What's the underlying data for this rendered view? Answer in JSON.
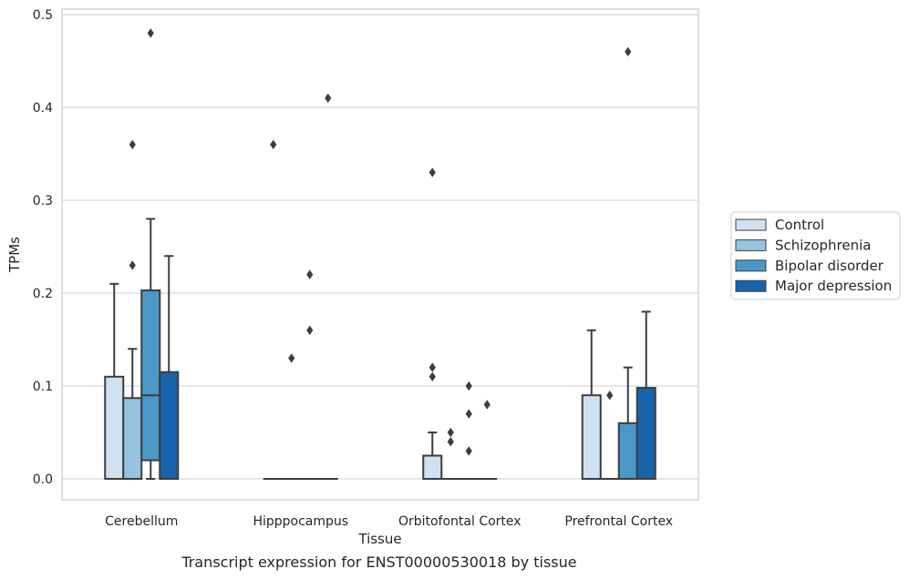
{
  "chart_data": {
    "type": "boxplot",
    "title": "",
    "caption": "Transcript expression for ENST00000530018 by tissue",
    "xlabel": "Tissue",
    "ylabel": "TPMs",
    "ylim": [
      -0.023,
      0.505
    ],
    "yticks": [
      "0.0",
      "0.1",
      "0.2",
      "0.3",
      "0.4",
      "0.5"
    ],
    "categories": [
      "Cerebellum",
      "Hipppocampus",
      "Orbitofontal Cortex",
      "Prefrontal Cortex"
    ],
    "grid": "horizontal",
    "legend_position": "right",
    "series": [
      {
        "name": "Control",
        "color": "#d0e1f2",
        "boxes": [
          {
            "q1": 0.0,
            "median": 0.0,
            "q3": 0.11,
            "whisker_low": 0.0,
            "whisker_high": 0.21,
            "outliers": []
          },
          {
            "q1": 0.0,
            "median": 0.0,
            "q3": 0.0,
            "whisker_low": 0.0,
            "whisker_high": 0.0,
            "outliers": [
              0.36
            ]
          },
          {
            "q1": 0.0,
            "median": 0.0,
            "q3": 0.025,
            "whisker_low": 0.0,
            "whisker_high": 0.05,
            "outliers": [
              0.33,
              0.12,
              0.11
            ]
          },
          {
            "q1": 0.0,
            "median": 0.0,
            "q3": 0.09,
            "whisker_low": 0.0,
            "whisker_high": 0.16,
            "outliers": []
          }
        ]
      },
      {
        "name": "Schizophrenia",
        "color": "#94c4df",
        "boxes": [
          {
            "q1": 0.0,
            "median": 0.0,
            "q3": 0.087,
            "whisker_low": 0.0,
            "whisker_high": 0.14,
            "outliers": [
              0.36,
              0.23
            ]
          },
          {
            "q1": 0.0,
            "median": 0.0,
            "q3": 0.0,
            "whisker_low": 0.0,
            "whisker_high": 0.0,
            "outliers": [
              0.13
            ]
          },
          {
            "q1": 0.0,
            "median": 0.0,
            "q3": 0.0,
            "whisker_low": 0.0,
            "whisker_high": 0.0,
            "outliers": [
              0.05,
              0.04
            ]
          },
          {
            "q1": 0.0,
            "median": 0.0,
            "q3": 0.0,
            "whisker_low": 0.0,
            "whisker_high": 0.0,
            "outliers": [
              0.09
            ]
          }
        ]
      },
      {
        "name": "Bipolar disorder",
        "color": "#4a98c9",
        "boxes": [
          {
            "q1": 0.02,
            "median": 0.09,
            "q3": 0.203,
            "whisker_low": 0.0,
            "whisker_high": 0.28,
            "outliers": [
              0.48
            ]
          },
          {
            "q1": 0.0,
            "median": 0.0,
            "q3": 0.0,
            "whisker_low": 0.0,
            "whisker_high": 0.0,
            "outliers": [
              0.22,
              0.16
            ]
          },
          {
            "q1": 0.0,
            "median": 0.0,
            "q3": 0.0,
            "whisker_low": 0.0,
            "whisker_high": 0.0,
            "outliers": [
              0.1,
              0.07,
              0.03
            ]
          },
          {
            "q1": 0.0,
            "median": 0.0,
            "q3": 0.06,
            "whisker_low": 0.0,
            "whisker_high": 0.12,
            "outliers": [
              0.46
            ]
          }
        ]
      },
      {
        "name": "Major depression",
        "color": "#1764ab",
        "boxes": [
          {
            "q1": 0.0,
            "median": 0.0,
            "q3": 0.115,
            "whisker_low": 0.0,
            "whisker_high": 0.24,
            "outliers": []
          },
          {
            "q1": 0.0,
            "median": 0.0,
            "q3": 0.0,
            "whisker_low": 0.0,
            "whisker_high": 0.0,
            "outliers": [
              0.41
            ]
          },
          {
            "q1": 0.0,
            "median": 0.0,
            "q3": 0.0,
            "whisker_low": 0.0,
            "whisker_high": 0.0,
            "outliers": [
              0.08
            ]
          },
          {
            "q1": 0.0,
            "median": 0.0,
            "q3": 0.098,
            "whisker_low": 0.0,
            "whisker_high": 0.18,
            "outliers": []
          }
        ]
      }
    ]
  }
}
